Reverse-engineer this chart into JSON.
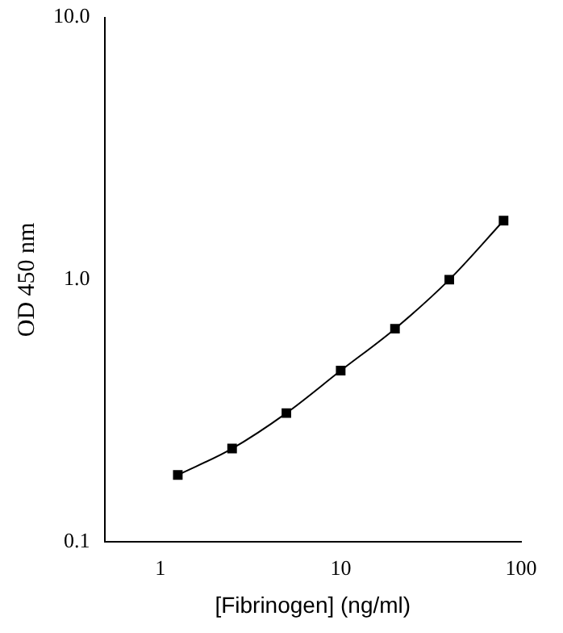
{
  "chart_data": {
    "type": "line",
    "xlabel": "[Fibrinogen] (ng/ml)",
    "ylabel": "OD 450 nm",
    "log": "xy",
    "grid": false,
    "legend": false,
    "xlim": [
      0.49,
      100
    ],
    "xticks": [
      1,
      10,
      100
    ],
    "ylim": [
      0.1,
      10
    ],
    "yticks": [
      {
        "value": 0.1,
        "label": "0.1"
      },
      {
        "value": 1,
        "label": "1.0"
      },
      {
        "value": 10,
        "label": "10.0"
      }
    ],
    "series": [
      {
        "color": "#000000",
        "marker": "square",
        "line_style": "solid",
        "x": [
          1.25,
          2.5,
          5,
          10,
          20,
          40,
          80
        ],
        "values": [
          0.18,
          0.227,
          0.31,
          0.45,
          0.65,
          1.0,
          1.68
        ]
      }
    ]
  }
}
